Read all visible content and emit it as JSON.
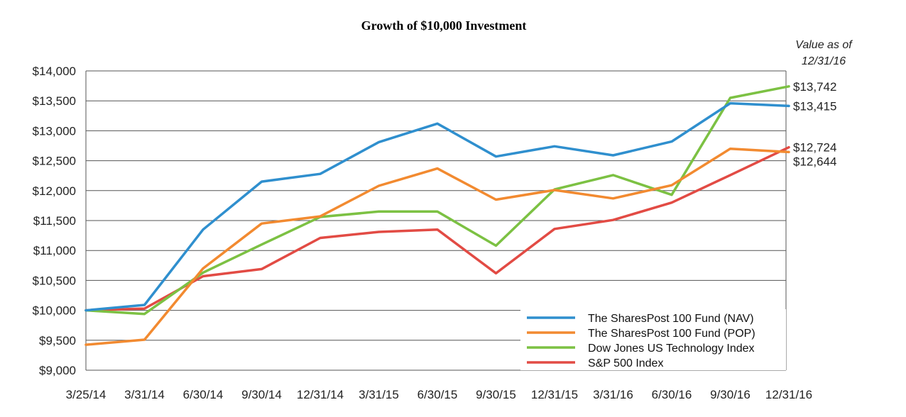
{
  "chart_data": {
    "type": "line",
    "title": "Growth of $10,000 Investment",
    "end_label_header": [
      "Value as of",
      "12/31/16"
    ],
    "categories": [
      "3/25/14",
      "3/31/14",
      "6/30/14",
      "9/30/14",
      "12/31/14",
      "3/31/15",
      "6/30/15",
      "9/30/15",
      "12/31/15",
      "3/31/16",
      "6/30/16",
      "9/30/16",
      "12/31/16"
    ],
    "ylim": [
      9000,
      14000
    ],
    "yticks": [
      9000,
      9500,
      10000,
      10500,
      11000,
      11500,
      12000,
      12500,
      13000,
      13500,
      14000
    ],
    "ytick_labels": [
      "$9,000",
      "$9,500",
      "$10,000",
      "$10,500",
      "$11,000",
      "$11,500",
      "$12,000",
      "$12,500",
      "$13,000",
      "$13,500",
      "$14,000"
    ],
    "grid": true,
    "legend_position": "bottom-right",
    "series": [
      {
        "name": "The SharesPost 100 Fund (NAV)",
        "color": "#2f8fce",
        "values": [
          10000,
          10090,
          11350,
          12150,
          12280,
          12810,
          13120,
          12570,
          12740,
          12590,
          12820,
          13460,
          13415
        ],
        "end_label": "$13,415"
      },
      {
        "name": "The SharesPost 100 Fund (POP)",
        "color": "#f28a30",
        "values": [
          9425,
          9510,
          10700,
          11450,
          11570,
          12080,
          12370,
          11850,
          12010,
          11870,
          12090,
          12700,
          12644
        ],
        "end_label": "$12,644"
      },
      {
        "name": "Dow Jones US Technology Index",
        "color": "#7cc143",
        "values": [
          10000,
          9940,
          10630,
          11100,
          11560,
          11650,
          11650,
          11080,
          12020,
          12260,
          11930,
          13550,
          13742
        ],
        "end_label": "$13,742"
      },
      {
        "name": "S&P 500 Index",
        "color": "#e24b44",
        "values": [
          10000,
          10030,
          10570,
          10690,
          11210,
          11310,
          11350,
          10620,
          11360,
          11510,
          11800,
          12260,
          12724
        ],
        "end_label": "$12,724"
      }
    ]
  }
}
